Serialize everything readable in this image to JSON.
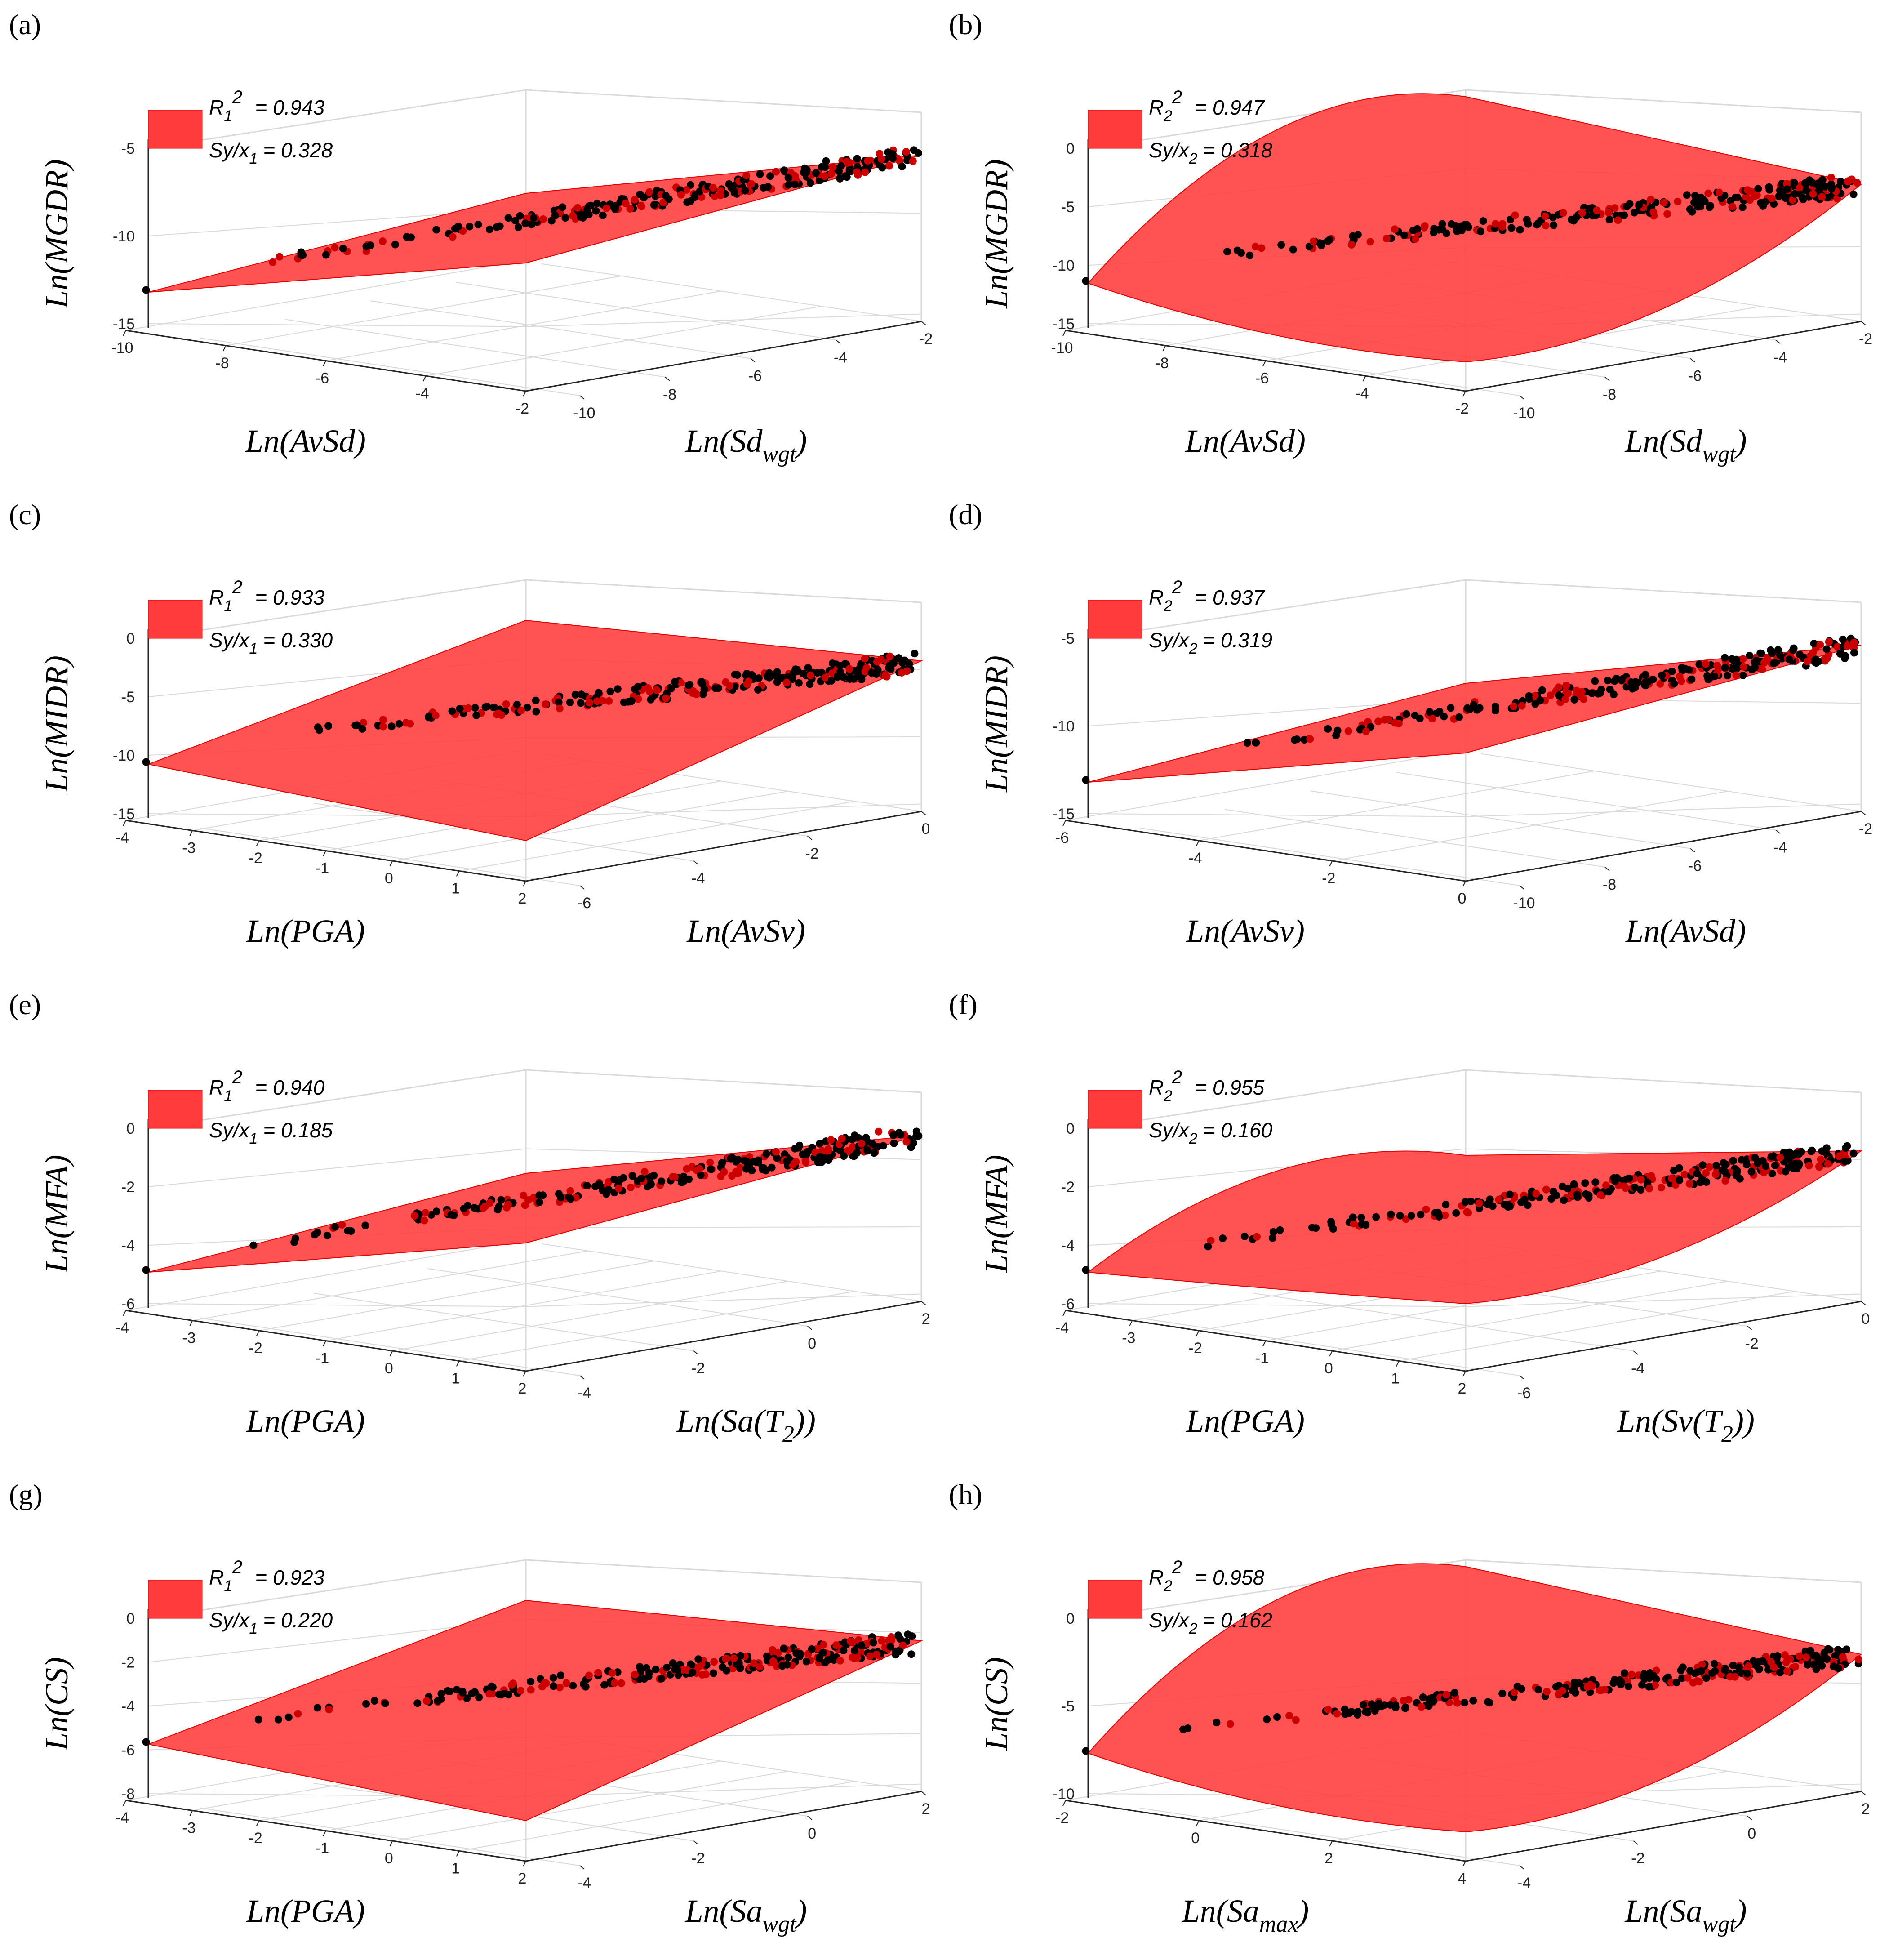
{
  "colors": {
    "surface": "#ff3b3b",
    "surface_edge": "#e00000",
    "point_black": "#000000",
    "point_red": "#cc0000",
    "grid": "#d9d9d9",
    "axis": "#262626"
  },
  "chart_data": [
    {
      "panel": "(a)",
      "type": "surface3d-scatter",
      "zlabel": "Ln(MGDR)",
      "xlabel": {
        "main": "Ln(AvSd)",
        "sub": ""
      },
      "ylabel": {
        "main": "Ln(Sd",
        "sub": "wgt",
        "tail": ")"
      },
      "legend": {
        "r_main": "R",
        "r_sub": "1",
        "r_sup": "2",
        "r_value": "= 0.943",
        "s_main": "Sy/x",
        "s_sub": "1",
        "s_value": "= 0.328"
      },
      "x_ticks": [
        "-10",
        "-8",
        "-6",
        "-4",
        "-2"
      ],
      "y_ticks": [
        "-10",
        "-8",
        "-6",
        "-4",
        "-2"
      ],
      "z_ticks": [
        "-5",
        "-10",
        "-15"
      ],
      "surface_shape": "flat",
      "points_start": [
        -11.6,
        -13.4
      ],
      "points_end": [
        -2.4,
        -4.8
      ]
    },
    {
      "panel": "(b)",
      "type": "surface3d-scatter",
      "zlabel": "Ln(MGDR)",
      "xlabel": {
        "main": "Ln(AvSd)",
        "sub": ""
      },
      "ylabel": {
        "main": "Ln(Sd",
        "sub": "wgt",
        "tail": ")"
      },
      "legend": {
        "r_main": "R",
        "r_sub": "2",
        "r_sup": "2",
        "r_value": "= 0.947",
        "s_main": "Sy/x",
        "s_sub": "2",
        "s_value": "= 0.318"
      },
      "x_ticks": [
        "-10",
        "-8",
        "-6",
        "-4",
        "-2"
      ],
      "y_ticks": [
        "-10",
        "-8",
        "-6",
        "-4",
        "-2"
      ],
      "z_ticks": [
        "0",
        "-5",
        "-10",
        "-15"
      ],
      "surface_shape": "saddle",
      "points_start": [
        -11.6,
        -13.4
      ],
      "points_end": [
        -2.4,
        -4.8
      ]
    },
    {
      "panel": "(c)",
      "type": "surface3d-scatter",
      "zlabel": "Ln(MIDR)",
      "xlabel": {
        "main": "Ln(PGA)",
        "sub": ""
      },
      "ylabel": {
        "main": "Ln(AvSv)",
        "sub": "",
        "tail": ""
      },
      "legend": {
        "r_main": "R",
        "r_sub": "1",
        "r_sup": "2",
        "r_value": "= 0.933",
        "s_main": "Sy/x",
        "s_sub": "1",
        "s_value": "= 0.330"
      },
      "x_ticks": [
        "-4",
        "-3",
        "-2",
        "-1",
        "0",
        "1",
        "2"
      ],
      "y_ticks": [
        "-6",
        "-4",
        "-2",
        "0"
      ],
      "z_ticks": [
        "0",
        "-5",
        "-10",
        "-15"
      ],
      "surface_shape": "plane-wide",
      "points_start": [
        -10.4,
        -12.4
      ],
      "points_end": [
        -3.6,
        -4.6
      ]
    },
    {
      "panel": "(d)",
      "type": "surface3d-scatter",
      "zlabel": "Ln(MIDR)",
      "xlabel": {
        "main": "Ln(AvSv)",
        "sub": ""
      },
      "ylabel": {
        "main": "Ln(AvSd)",
        "sub": "",
        "tail": ""
      },
      "legend": {
        "r_main": "R",
        "r_sub": "2",
        "r_sup": "2",
        "r_value": "= 0.937",
        "s_main": "Sy/x",
        "s_sub": "2",
        "s_value": "= 0.319"
      },
      "x_ticks": [
        "-6",
        "-4",
        "-2",
        "0"
      ],
      "y_ticks": [
        "-10",
        "-8",
        "-6",
        "-4",
        "-2"
      ],
      "z_ticks": [
        "-5",
        "-10",
        "-15"
      ],
      "surface_shape": "flat",
      "points_start": [
        -11.6,
        -12.4
      ],
      "points_end": [
        -3.6,
        -4.8
      ]
    },
    {
      "panel": "(e)",
      "type": "surface3d-scatter",
      "zlabel": "Ln(MFA)",
      "xlabel": {
        "main": "Ln(PGA)",
        "sub": ""
      },
      "ylabel": {
        "main": "Ln(Sa(T",
        "sub": "2",
        "tail": "))"
      },
      "legend": {
        "r_main": "R",
        "r_sub": "1",
        "r_sup": "2",
        "r_value": "= 0.940",
        "s_main": "Sy/x",
        "s_sub": "1",
        "s_value": "= 0.185"
      },
      "x_ticks": [
        "-4",
        "-3",
        "-2",
        "-1",
        "0",
        "1",
        "2"
      ],
      "y_ticks": [
        "-4",
        "-2",
        "0",
        "2"
      ],
      "z_ticks": [
        "0",
        "-2",
        "-4",
        "-6"
      ],
      "surface_shape": "flat",
      "points_start": [
        -4.4,
        -6.3
      ],
      "points_end": [
        0.4,
        0.2
      ]
    },
    {
      "panel": "(f)",
      "type": "surface3d-scatter",
      "zlabel": "Ln(MFA)",
      "xlabel": {
        "main": "Ln(PGA)",
        "sub": ""
      },
      "ylabel": {
        "main": "Ln(Sv(T",
        "sub": "2",
        "tail": "))"
      },
      "legend": {
        "r_main": "R",
        "r_sub": "2",
        "r_sup": "2",
        "r_value": "= 0.955",
        "s_main": "Sy/x",
        "s_sub": "2",
        "s_value": "= 0.160"
      },
      "x_ticks": [
        "-4",
        "-3",
        "-2",
        "-1",
        "0",
        "1",
        "2"
      ],
      "y_ticks": [
        "-6",
        "-4",
        "-2",
        "0"
      ],
      "z_ticks": [
        "0",
        "-2",
        "-4",
        "-6"
      ],
      "surface_shape": "curved",
      "points_start": [
        -4.4,
        -6.4
      ],
      "points_end": [
        0.4,
        0.2
      ]
    },
    {
      "panel": "(g)",
      "type": "surface3d-scatter",
      "zlabel": "Ln(CS)",
      "xlabel": {
        "main": "Ln(PGA)",
        "sub": ""
      },
      "ylabel": {
        "main": "Ln(Sa",
        "sub": "wgt",
        "tail": ")"
      },
      "legend": {
        "r_main": "R",
        "r_sub": "1",
        "r_sup": "2",
        "r_value": "= 0.923",
        "s_main": "Sy/x",
        "s_sub": "1",
        "s_value": "= 0.220"
      },
      "x_ticks": [
        "-4",
        "-3",
        "-2",
        "-1",
        "0",
        "1",
        "2"
      ],
      "y_ticks": [
        "-4",
        "-2",
        "0",
        "2"
      ],
      "z_ticks": [
        "0",
        "-2",
        "-4",
        "-6",
        "-8"
      ],
      "surface_shape": "plane-wide",
      "points_start": [
        -6.2,
        -7.8
      ],
      "points_end": [
        -1.4,
        -1.2
      ]
    },
    {
      "panel": "(h)",
      "type": "surface3d-scatter",
      "zlabel": "Ln(CS)",
      "xlabel": {
        "main": "Ln(Sa",
        "sub": "max",
        "tail": ")"
      },
      "ylabel": {
        "main": "Ln(Sa",
        "sub": "wgt",
        "tail": ")"
      },
      "legend": {
        "r_main": "R",
        "r_sub": "2",
        "r_sup": "2",
        "r_value": "= 0.958",
        "s_main": "Sy/x",
        "s_sub": "2",
        "s_value": "= 0.162"
      },
      "x_ticks": [
        "-2",
        "0",
        "2",
        "4"
      ],
      "y_ticks": [
        "-4",
        "-2",
        "0",
        "2"
      ],
      "z_ticks": [
        "0",
        "-5",
        "-10"
      ],
      "surface_shape": "saddle",
      "points_start": [
        -6.2,
        -7.8
      ],
      "points_end": [
        -1.4,
        -1.4
      ]
    }
  ]
}
